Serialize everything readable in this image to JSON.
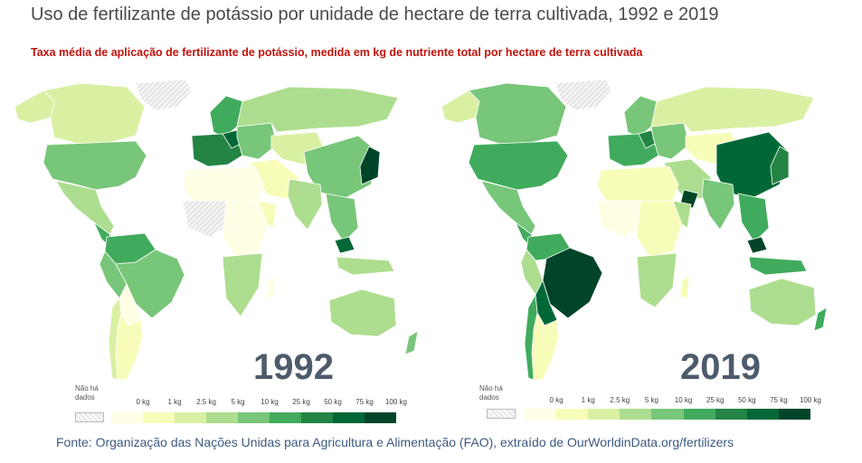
{
  "title": "Uso de fertilizante de potássio por unidade de hectare de terra cultivada, 1992 e 2019",
  "subtitle": "Taxa média de aplicação de fertilizante de potássio, medida em kg de nutriente total por hectare de terra cultivada",
  "maps": [
    {
      "year": "1992"
    },
    {
      "year": "2019"
    }
  ],
  "legend": {
    "no_data_label": "Não há dados",
    "ticks": [
      "0 kg",
      "1 kg",
      "2.5 kg",
      "5 kg",
      "10 kg",
      "25 kg",
      "50 kg",
      "75 kg",
      "100 kg"
    ],
    "colors": [
      "#ffffe5",
      "#f7fcb9",
      "#d9f0a3",
      "#addd8e",
      "#78c679",
      "#41ab5d",
      "#238443",
      "#006837",
      "#004529"
    ]
  },
  "source": "Fonte: Organização das Nações Unidas para Agricultura e Alimentação (FAO), extraído de OurWorldinData.org/fertilizers"
}
